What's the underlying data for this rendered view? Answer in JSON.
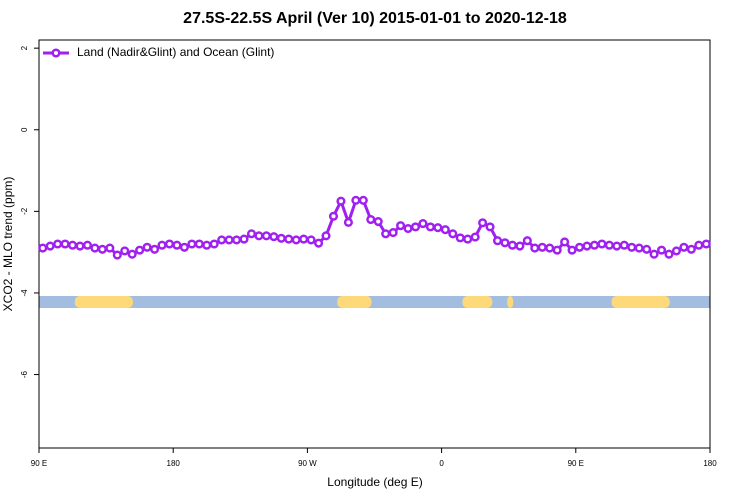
{
  "chart_data": {
    "type": "line",
    "title": "27.5S-22.5S April (Ver 10)   2015-01-01 to 2020-12-18",
    "xlabel": "Longitude (deg E)",
    "ylabel": "XCO2 - MLO trend (ppm)",
    "xlim": [
      90,
      540
    ],
    "xticks": [
      {
        "value": 90,
        "label": "90 E"
      },
      {
        "value": 180,
        "label": "180"
      },
      {
        "value": 270,
        "label": "90 W"
      },
      {
        "value": 360,
        "label": "0"
      },
      {
        "value": 450,
        "label": "90 E"
      },
      {
        "value": 540,
        "label": "180"
      }
    ],
    "ylim": [
      -7.8,
      2.2
    ],
    "yticks": [
      -6,
      -4,
      -2,
      0,
      2
    ],
    "grid": false,
    "legend": "top-left",
    "x": [
      92.5,
      97.5,
      102.5,
      107.5,
      112.5,
      117.5,
      122.5,
      127.5,
      132.5,
      137.5,
      142.5,
      147.5,
      152.5,
      157.5,
      162.5,
      167.5,
      172.5,
      177.5,
      182.5,
      187.5,
      192.5,
      197.5,
      202.5,
      207.5,
      212.5,
      217.5,
      222.5,
      227.5,
      232.5,
      237.5,
      242.5,
      247.5,
      252.5,
      257.5,
      262.5,
      267.5,
      272.5,
      277.5,
      282.5,
      287.5,
      292.5,
      297.5,
      302.5,
      307.5,
      312.5,
      317.5,
      322.5,
      327.5,
      332.5,
      337.5,
      342.5,
      347.5,
      352.5,
      357.5,
      362.5,
      367.5,
      372.5,
      377.5,
      382.5,
      387.5,
      392.5,
      397.5,
      402.5,
      407.5,
      412.5,
      417.5,
      422.5,
      427.5,
      432.5,
      437.5,
      442.5,
      447.5,
      452.5,
      457.5,
      462.5,
      467.5,
      472.5,
      477.5,
      482.5,
      487.5,
      492.5,
      497.5,
      502.5,
      507.5,
      512.5,
      517.5,
      522.5,
      527.5,
      532.5,
      537.5
    ],
    "series": [
      {
        "name": "Land (Nadir&Glint) and Ocean (Glint)",
        "color": "#a020f0",
        "values": [
          -2.9,
          -2.85,
          -2.8,
          -2.8,
          -2.83,
          -2.85,
          -2.83,
          -2.9,
          -2.93,
          -2.9,
          -3.07,
          -2.97,
          -3.05,
          -2.95,
          -2.88,
          -2.93,
          -2.83,
          -2.8,
          -2.83,
          -2.88,
          -2.8,
          -2.8,
          -2.83,
          -2.8,
          -2.7,
          -2.7,
          -2.7,
          -2.68,
          -2.55,
          -2.6,
          -2.6,
          -2.62,
          -2.66,
          -2.68,
          -2.7,
          -2.68,
          -2.7,
          -2.78,
          -2.6,
          -2.12,
          -1.75,
          -2.27,
          -1.73,
          -1.73,
          -2.2,
          -2.25,
          -2.55,
          -2.52,
          -2.35,
          -2.42,
          -2.38,
          -2.3,
          -2.38,
          -2.4,
          -2.45,
          -2.55,
          -2.65,
          -2.68,
          -2.63,
          -2.28,
          -2.38,
          -2.72,
          -2.77,
          -2.83,
          -2.85,
          -2.72,
          -2.9,
          -2.88,
          -2.9,
          -2.95,
          -2.75,
          -2.95,
          -2.88,
          -2.85,
          -2.83,
          -2.8,
          -2.83,
          -2.85,
          -2.83,
          -2.88,
          -2.9,
          -2.93,
          -3.05,
          -2.95,
          -3.05,
          -2.97,
          -2.88,
          -2.93,
          -2.83,
          -2.8
        ]
      }
    ],
    "land": [
      [
        114,
        153
      ],
      [
        290,
        313
      ],
      [
        374,
        394
      ],
      [
        404,
        408
      ],
      [
        474,
        513
      ]
    ],
    "ocean_color": "#a3bde0",
    "land_color": "#fdd97a"
  }
}
